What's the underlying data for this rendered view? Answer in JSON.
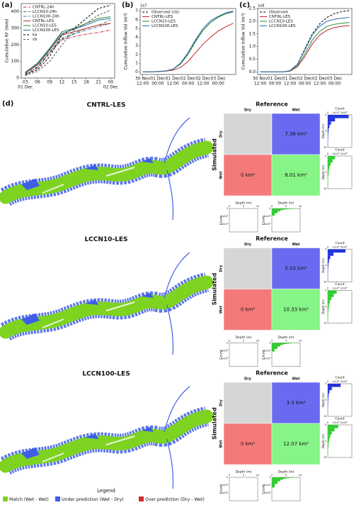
{
  "chart_data": [
    {
      "type": "line",
      "label": "(a)",
      "ylabel": "Cumulative RF (mm)",
      "x": [
        3,
        6,
        9,
        12,
        15,
        18,
        21,
        24
      ],
      "xlim": [
        2,
        25
      ],
      "xticks": [
        {
          "value": 3,
          "label": "03"
        },
        {
          "value": 6,
          "label": "06"
        },
        {
          "value": 9,
          "label": "09"
        },
        12,
        15,
        18,
        21,
        {
          "value": 24,
          "label": "00"
        }
      ],
      "date_labels": [
        {
          "value": 3,
          "label": "01 Dec"
        },
        {
          "value": 24,
          "label": "02 Dec"
        }
      ],
      "ylim": [
        0,
        450
      ],
      "yticks": [
        0,
        100,
        200,
        300,
        400
      ],
      "legend": "upper left",
      "series": [
        {
          "name": "CNTRL-24h",
          "color": "#c0282d",
          "dash": "dashdot",
          "values": [
            20,
            60,
            150,
            230,
            250,
            265,
            275,
            290
          ]
        },
        {
          "name": "LCCN10-24h",
          "color": "#2a8a3a",
          "dash": "dashdot",
          "values": [
            25,
            70,
            160,
            240,
            270,
            300,
            320,
            350
          ]
        },
        {
          "name": "LCCN100-24h",
          "color": "#2f6fb0",
          "dash": "dashdot",
          "values": [
            25,
            65,
            155,
            235,
            265,
            290,
            310,
            330
          ]
        },
        {
          "name": "CNTRL-LES",
          "color": "#c0282d",
          "dash": "solid",
          "values": [
            30,
            80,
            170,
            260,
            280,
            300,
            320,
            330
          ]
        },
        {
          "name": "LCCN10-LES",
          "color": "#2a8a3a",
          "dash": "solid",
          "values": [
            35,
            90,
            180,
            280,
            300,
            330,
            360,
            370
          ]
        },
        {
          "name": "LCCN100-LES",
          "color": "#2f6fb0",
          "dash": "solid",
          "values": [
            35,
            85,
            175,
            270,
            295,
            320,
            350,
            360
          ]
        },
        {
          "name": "ka",
          "color": "#000000",
          "dash": "dashed",
          "values": [
            20,
            50,
            130,
            260,
            300,
            360,
            420,
            440
          ]
        },
        {
          "name": "cb",
          "color": "#555555",
          "dash": "dashed",
          "values": [
            15,
            40,
            100,
            200,
            290,
            330,
            380,
            410
          ]
        }
      ]
    },
    {
      "type": "line",
      "label": "(b)",
      "ylabel": "Cumulative Inflow Vol (m³)",
      "scale_label": "1e7",
      "x": [
        0,
        6,
        12,
        18,
        24,
        30,
        36,
        42,
        48,
        54,
        60,
        66,
        72
      ],
      "xlim": [
        -2,
        74
      ],
      "xticks": [
        {
          "value": 0,
          "label": "12:00"
        },
        {
          "value": 12,
          "label": "00:00"
        },
        {
          "value": 24,
          "label": "12:00"
        },
        {
          "value": 36,
          "label": "00:00"
        },
        {
          "value": 48,
          "label": "12:00"
        },
        {
          "value": 60,
          "label": "00:00"
        }
      ],
      "xtick_dates": [
        "30 Nov",
        "01 Dec",
        "01 Dec",
        "02 Dec",
        "02 Dec",
        "03 Dec"
      ],
      "ylim": [
        -0.3,
        7.3
      ],
      "yticks": [
        0,
        1,
        2,
        3,
        4,
        5,
        6,
        7
      ],
      "legend": "upper left",
      "series": [
        {
          "name": "Observed (cb)",
          "color": "#000000",
          "dash": "dashed",
          "values": [
            0,
            0,
            0.05,
            0.1,
            0.3,
            0.9,
            2.2,
            3.6,
            4.8,
            5.7,
            6.3,
            6.7,
            7.0
          ]
        },
        {
          "name": "CNTRL-LES",
          "color": "#c0282d",
          "dash": "solid",
          "values": [
            0,
            0,
            0.03,
            0.08,
            0.2,
            0.5,
            1.2,
            2.2,
            3.2,
            4.0,
            4.7,
            5.2,
            5.6
          ]
        },
        {
          "name": "LCCN10-LES",
          "color": "#2a8a3a",
          "dash": "solid",
          "values": [
            0,
            0,
            0.05,
            0.1,
            0.3,
            0.9,
            2.0,
            3.5,
            4.8,
            5.7,
            6.3,
            6.7,
            6.9
          ]
        },
        {
          "name": "LCCN100-LES",
          "color": "#2f6fb0",
          "dash": "solid",
          "values": [
            0,
            0,
            0.05,
            0.1,
            0.3,
            1.0,
            2.2,
            3.7,
            5.0,
            5.9,
            6.4,
            6.8,
            7.0
          ]
        }
      ]
    },
    {
      "type": "line",
      "label": "(c)",
      "ylabel": "Cumulative Inflow Vol (m³)",
      "scale_label": "1e8",
      "x": [
        0,
        6,
        12,
        18,
        24,
        30,
        36,
        42,
        48,
        54,
        60,
        66,
        72
      ],
      "xlim": [
        -2,
        74
      ],
      "xticks": [
        {
          "value": 0,
          "label": "12:00"
        },
        {
          "value": 12,
          "label": "00:00"
        },
        {
          "value": 24,
          "label": "12:00"
        },
        {
          "value": 36,
          "label": "00:00"
        },
        {
          "value": 48,
          "label": "12:00"
        },
        {
          "value": 60,
          "label": "00:00"
        }
      ],
      "xtick_dates": [
        "30 Nov",
        "01 Dec",
        "01 Dec",
        "02 Dec",
        "02 Dec",
        "03 Dec"
      ],
      "ylim": [
        -0.1,
        2.5
      ],
      "yticks": [
        {
          "value": 0,
          "label": "0.0"
        },
        0.5,
        {
          "value": 1,
          "label": "1.0"
        },
        1.5,
        {
          "value": 2,
          "label": "2.0"
        },
        2.5
      ],
      "legend": "upper left",
      "series": [
        {
          "name": "Observed",
          "color": "#000000",
          "dash": "dashed",
          "values": [
            0,
            0,
            0,
            0,
            0.05,
            0.3,
            0.9,
            1.5,
            1.9,
            2.15,
            2.3,
            2.38,
            2.42
          ]
        },
        {
          "name": "CNTRL-LES",
          "color": "#c0282d",
          "dash": "solid",
          "values": [
            0,
            0,
            0,
            0,
            0.03,
            0.2,
            0.6,
            1.1,
            1.45,
            1.65,
            1.75,
            1.8,
            1.83
          ]
        },
        {
          "name": "LCCN10-LES",
          "color": "#2a8a3a",
          "dash": "solid",
          "values": [
            0,
            0,
            0,
            0,
            0.04,
            0.25,
            0.7,
            1.25,
            1.6,
            1.8,
            1.88,
            1.92,
            1.95
          ]
        },
        {
          "name": "LCCN100-LES",
          "color": "#2f6fb0",
          "dash": "solid",
          "values": [
            0,
            0,
            0,
            0,
            0.05,
            0.3,
            0.85,
            1.45,
            1.8,
            2.0,
            2.08,
            2.12,
            2.15
          ]
        }
      ]
    },
    {
      "type": "flood-panels",
      "label": "(d)",
      "reference_label": "Reference",
      "simulated_label": "Simulated",
      "col_labels": [
        "Dry",
        "Wet"
      ],
      "row_labels": [
        "Dry",
        "Wet"
      ],
      "cell_colors": [
        "#6a6af0",
        "#f47a7a",
        "#86f486"
      ],
      "empty_color": "#d6d6d6",
      "count_label": "Count",
      "depth_label": "Depth (m)",
      "depth_bins": [
        0,
        1,
        2,
        3,
        4,
        5,
        6,
        7,
        8,
        9,
        10
      ],
      "depth_lim": [
        0,
        10
      ],
      "depth_ticks": [
        0,
        5,
        10
      ],
      "count_lim": [
        0,
        3
      ],
      "count_ticks": [
        0,
        {
          "value": 1,
          "label": "1x10⁵"
        },
        {
          "value": 2,
          "label": "2x10⁵"
        }
      ],
      "panels": [
        {
          "title": "CNTRL-LES",
          "values": [
            7.36,
            0,
            8.01
          ],
          "value_labels": [
            "7.36 km²",
            "0 km²",
            "8.01 km²"
          ],
          "under_counts": [
            2.6,
            0.9,
            0.4,
            0.2,
            0.1,
            0.06,
            0.04,
            0.02,
            0.01,
            0.01
          ],
          "match_counts": [
            0.9,
            0.6,
            0.35,
            0.2,
            0.12,
            0.08,
            0.05,
            0.03,
            0.02,
            0.01
          ]
        },
        {
          "title": "LCCN10-LES",
          "values": [
            5.03,
            0,
            10.33
          ],
          "value_labels": [
            "5.03 km²",
            "0 km²",
            "10.33 km²"
          ],
          "under_counts": [
            2.2,
            0.7,
            0.3,
            0.15,
            0.08,
            0.05,
            0.03,
            0.02,
            0.01,
            0.01
          ],
          "match_counts": [
            1.1,
            0.75,
            0.45,
            0.25,
            0.15,
            0.1,
            0.06,
            0.04,
            0.02,
            0.01
          ]
        },
        {
          "title": "LCCN100-LES",
          "values": [
            3.3,
            0,
            12.07
          ],
          "value_labels": [
            "3.3 km²",
            "0 km²",
            "12.07 km²"
          ],
          "under_counts": [
            1.6,
            0.5,
            0.2,
            0.1,
            0.06,
            0.04,
            0.02,
            0.01,
            0.01,
            0.005
          ],
          "match_counts": [
            1.3,
            0.85,
            0.5,
            0.3,
            0.18,
            0.11,
            0.07,
            0.04,
            0.02,
            0.01
          ]
        }
      ],
      "legend_title": "Legend",
      "legend": [
        {
          "name": "Match (Wet - Wet)",
          "color": "#7ed321"
        },
        {
          "name": "Under prediction (Wet - Dry)",
          "color": "#3f5ee8"
        },
        {
          "name": "Over prediction (Dry - Wet)",
          "color": "#d42a2a"
        }
      ]
    }
  ]
}
